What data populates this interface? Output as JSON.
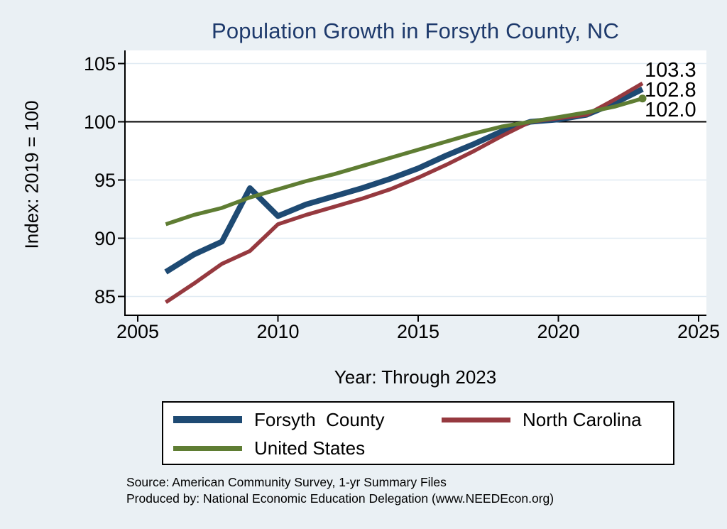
{
  "title": "Population Growth in Forsyth County, NC",
  "chart_data": {
    "type": "line",
    "title": "Population Growth in Forsyth County, NC",
    "title_color": "#1e3a6c",
    "xlabel": "Year: Through 2023",
    "ylabel": "Index: 2019 = 100",
    "x_ticks": [
      2005,
      2010,
      2015,
      2020,
      2025
    ],
    "y_ticks": [
      85,
      90,
      95,
      100,
      105
    ],
    "ref_line_y": 100,
    "xlim": [
      2004.5,
      2025.3
    ],
    "ylim": [
      83.5,
      106.1
    ],
    "grid": true,
    "grid_color": "#dfeaf2",
    "plot_background": "#ffffff",
    "figure_background": "#eaf0f4",
    "legend_position": "bottom",
    "x": [
      2006,
      2007,
      2008,
      2009,
      2010,
      2011,
      2012,
      2013,
      2014,
      2015,
      2016,
      2017,
      2018,
      2019,
      2020,
      2021,
      2022,
      2023
    ],
    "series": [
      {
        "name": "Forsyth County",
        "color": "#1e4a73",
        "line_width": 8,
        "end_label": "102.8",
        "end_marker": false,
        "values": [
          87.1,
          88.6,
          89.7,
          94.3,
          91.9,
          92.9,
          93.6,
          94.3,
          95.1,
          96.0,
          97.1,
          98.1,
          99.2,
          100.0,
          100.2,
          100.6,
          101.6,
          102.8
        ]
      },
      {
        "name": "North Carolina",
        "color": "#96393f",
        "line_width": 5.5,
        "end_label": "103.3",
        "end_marker": false,
        "values": [
          84.5,
          86.1,
          87.8,
          88.9,
          91.2,
          92.0,
          92.7,
          93.4,
          94.2,
          95.2,
          96.3,
          97.5,
          98.8,
          100.0,
          100.3,
          100.6,
          101.9,
          103.3
        ]
      },
      {
        "name": "United States",
        "color": "#5f7d33",
        "line_width": 5.5,
        "end_label": "102.0",
        "end_marker": true,
        "values": [
          91.2,
          92.0,
          92.6,
          93.5,
          94.2,
          94.9,
          95.5,
          96.2,
          96.9,
          97.6,
          98.3,
          99.0,
          99.6,
          100.0,
          100.4,
          100.8,
          101.3,
          102.0
        ]
      }
    ]
  },
  "legend": {
    "items": [
      {
        "label": "Forsyth  County",
        "series": 0
      },
      {
        "label": "North Carolina",
        "series": 1
      },
      {
        "label": "United States",
        "series": 2
      }
    ]
  },
  "source": {
    "line1": "Source: American Community Survey, 1-yr Summary Files",
    "line2": "Produced by: National Economic Education Delegation (www.NEEDEcon.org)"
  }
}
